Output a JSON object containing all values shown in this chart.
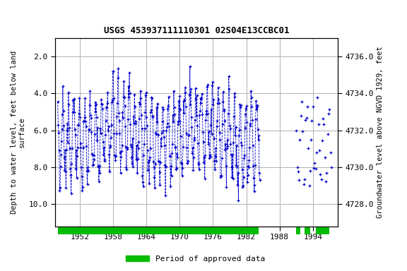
{
  "title": "USGS 453937111110301 02S04E13CCBC01",
  "ylabel_left": "Depth to water level, feet below land\nsurface",
  "ylabel_right": "Groundwater level above NGVD 1929, feet",
  "ylim_left": [
    11.2,
    1.0
  ],
  "ylim_right": [
    4726.8,
    4737.0
  ],
  "yticks_left": [
    2.0,
    4.0,
    6.0,
    8.0,
    10.0
  ],
  "ytick_labels_left": [
    "2.0",
    "4.0",
    "6.0",
    "8.0",
    "10.0"
  ],
  "yticks_right": [
    4728.0,
    4730.0,
    4732.0,
    4734.0,
    4736.0
  ],
  "ytick_labels_right": [
    "4728.0",
    "4730.0",
    "4732.0",
    "4734.0",
    "4736.0"
  ],
  "xlim": [
    1947.5,
    1998.5
  ],
  "xticks": [
    1952,
    1958,
    1964,
    1970,
    1976,
    1982,
    1988,
    1994
  ],
  "data_color": "#0000CC",
  "approved_color": "#00BB00",
  "title_fontsize": 9,
  "axis_fontsize": 7.5,
  "tick_fontsize": 8,
  "approved_periods": [
    [
      1948.0,
      1984.2
    ],
    [
      1991.0,
      1991.8
    ],
    [
      1992.5,
      1993.5
    ],
    [
      1994.5,
      1997.0
    ]
  ],
  "background_color": "#ffffff",
  "grid_color": "#b0b0b0",
  "seed": 12345,
  "dense_start": 1948.0,
  "dense_end": 1984.5,
  "sparse_start": 1991.0,
  "sparse_end": 1997.5
}
